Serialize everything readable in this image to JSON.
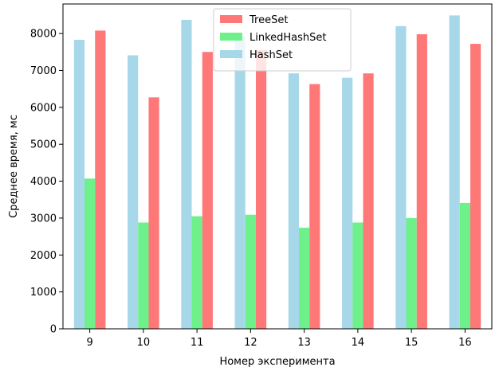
{
  "chart_data": {
    "type": "bar",
    "title": "",
    "xlabel": "Номер эксперимента",
    "ylabel": "Среднее время, мс",
    "categories": [
      "9",
      "10",
      "11",
      "12",
      "13",
      "14",
      "15",
      "16"
    ],
    "ylim": [
      0,
      8800
    ],
    "yticks": [
      0,
      1000,
      2000,
      3000,
      4000,
      5000,
      6000,
      7000,
      8000
    ],
    "grid": false,
    "legend_position": "top-center",
    "series": [
      {
        "name": "HashSet",
        "color": "#a6d8ea",
        "values": [
          7830,
          7410,
          8370,
          7900,
          6920,
          6800,
          8200,
          8490
        ]
      },
      {
        "name": "LinkedHashSet",
        "color": "#6ef08a",
        "values": [
          4070,
          2880,
          3050,
          3090,
          2740,
          2880,
          3000,
          3410
        ]
      },
      {
        "name": "TreeSet",
        "color": "#ff7878",
        "values": [
          8080,
          6270,
          7500,
          7550,
          6630,
          6920,
          7980,
          7720
        ]
      }
    ],
    "legend_order": [
      "TreeSet",
      "LinkedHashSet",
      "HashSet"
    ]
  }
}
